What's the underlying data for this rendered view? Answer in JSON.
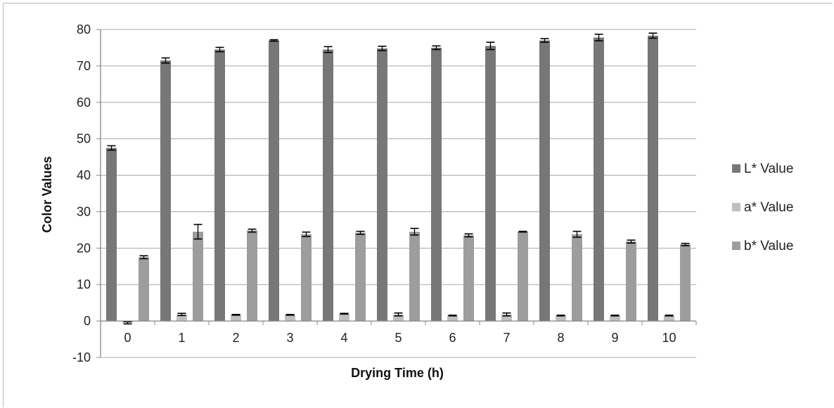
{
  "chart_data": {
    "type": "bar",
    "title": "",
    "xlabel": "Drying Time (h)",
    "ylabel": "Color Values",
    "ylim": [
      -10,
      80
    ],
    "yticks": [
      -10,
      0,
      10,
      20,
      30,
      40,
      50,
      60,
      70,
      80
    ],
    "grid": true,
    "legend_position": "right",
    "categories": [
      "0",
      "1",
      "2",
      "3",
      "4",
      "5",
      "6",
      "7",
      "8",
      "9",
      "10"
    ],
    "series": [
      {
        "name": "L* Value",
        "color": "#777777",
        "values": [
          47.5,
          71.5,
          74.5,
          77.0,
          74.5,
          74.8,
          75.0,
          75.5,
          77.0,
          77.8,
          78.3
        ],
        "errors": [
          0.6,
          0.7,
          0.6,
          0.2,
          0.8,
          0.6,
          0.5,
          1.0,
          0.5,
          0.9,
          0.7
        ]
      },
      {
        "name": "a* Value",
        "color": "#bfbfbf",
        "values": [
          -0.5,
          1.8,
          1.7,
          1.7,
          2.0,
          1.8,
          1.5,
          1.8,
          1.5,
          1.5,
          1.5
        ],
        "errors": [
          0.3,
          0.3,
          0.1,
          0.1,
          0.1,
          0.4,
          0.1,
          0.4,
          0.1,
          0.1,
          0.1
        ]
      },
      {
        "name": "b* Value",
        "color": "#9d9d9d",
        "values": [
          17.5,
          24.5,
          24.8,
          23.8,
          24.2,
          24.5,
          23.5,
          24.5,
          23.8,
          21.8,
          21.0
        ],
        "errors": [
          0.4,
          2.0,
          0.4,
          0.6,
          0.4,
          0.9,
          0.4,
          0.1,
          0.8,
          0.4,
          0.3
        ]
      }
    ]
  }
}
